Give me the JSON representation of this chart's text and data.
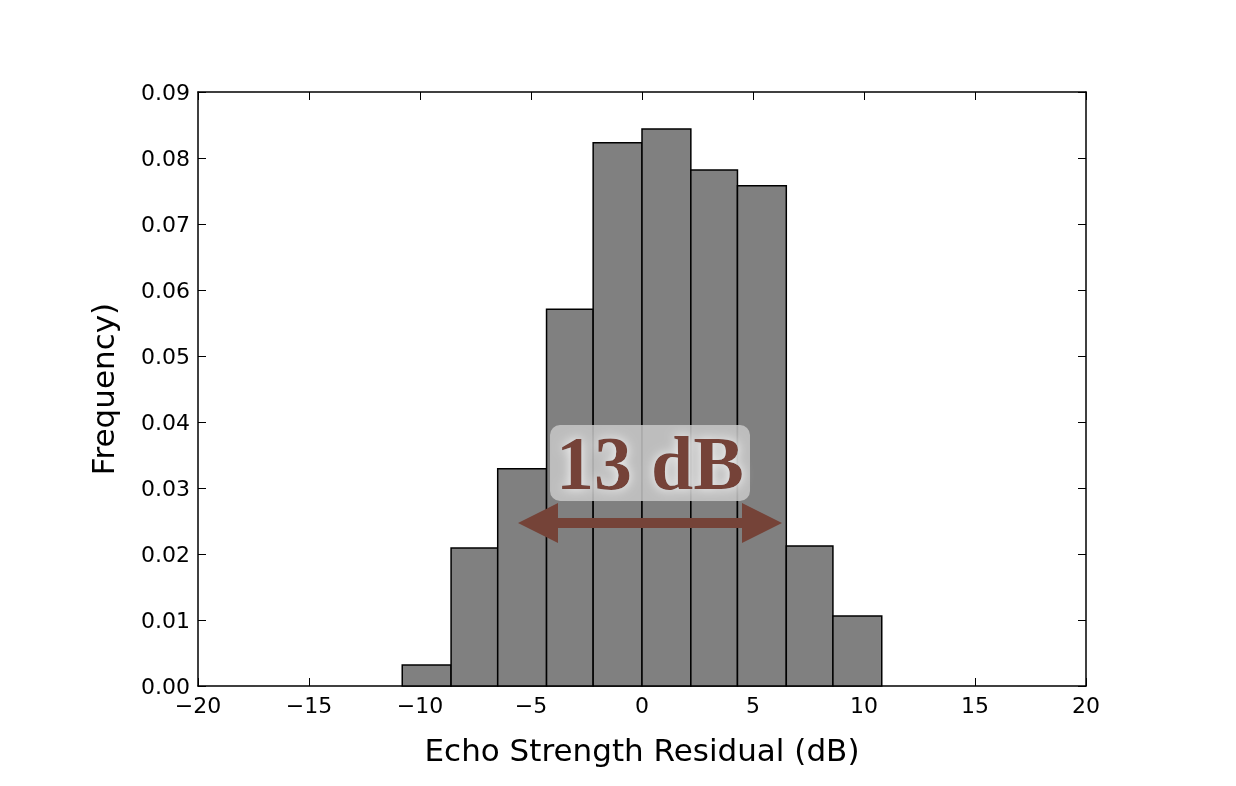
{
  "chart_data": {
    "type": "histogram",
    "xlabel": "Echo Strength Residual (dB)",
    "ylabel": "Frequency)",
    "bins": [
      -10.8,
      -8.6,
      -6.5,
      -4.3,
      -2.2,
      0,
      2.2,
      4.3,
      6.5,
      8.6,
      10.8
    ],
    "values": [
      0.0032,
      0.0209,
      0.0329,
      0.0571,
      0.0823,
      0.0844,
      0.0782,
      0.0758,
      0.0212,
      0.0106
    ],
    "color": "#808080",
    "xlim": [
      -20,
      20
    ],
    "xticks": [
      {
        "value": -20,
        "label": "−20"
      },
      {
        "value": -15,
        "label": "−15"
      },
      {
        "value": -10,
        "label": "−10"
      },
      {
        "value": -5,
        "label": "−5"
      },
      0,
      5,
      10,
      15,
      20
    ],
    "ylim": [
      0,
      0.09
    ],
    "yticks": [
      {
        "value": 0,
        "label": "0.00"
      },
      0.01,
      0.02,
      0.03,
      0.04,
      0.05,
      0.06,
      0.07,
      0.08,
      0.09
    ],
    "annotations": [
      "13 dB"
    ],
    "grid": false
  }
}
